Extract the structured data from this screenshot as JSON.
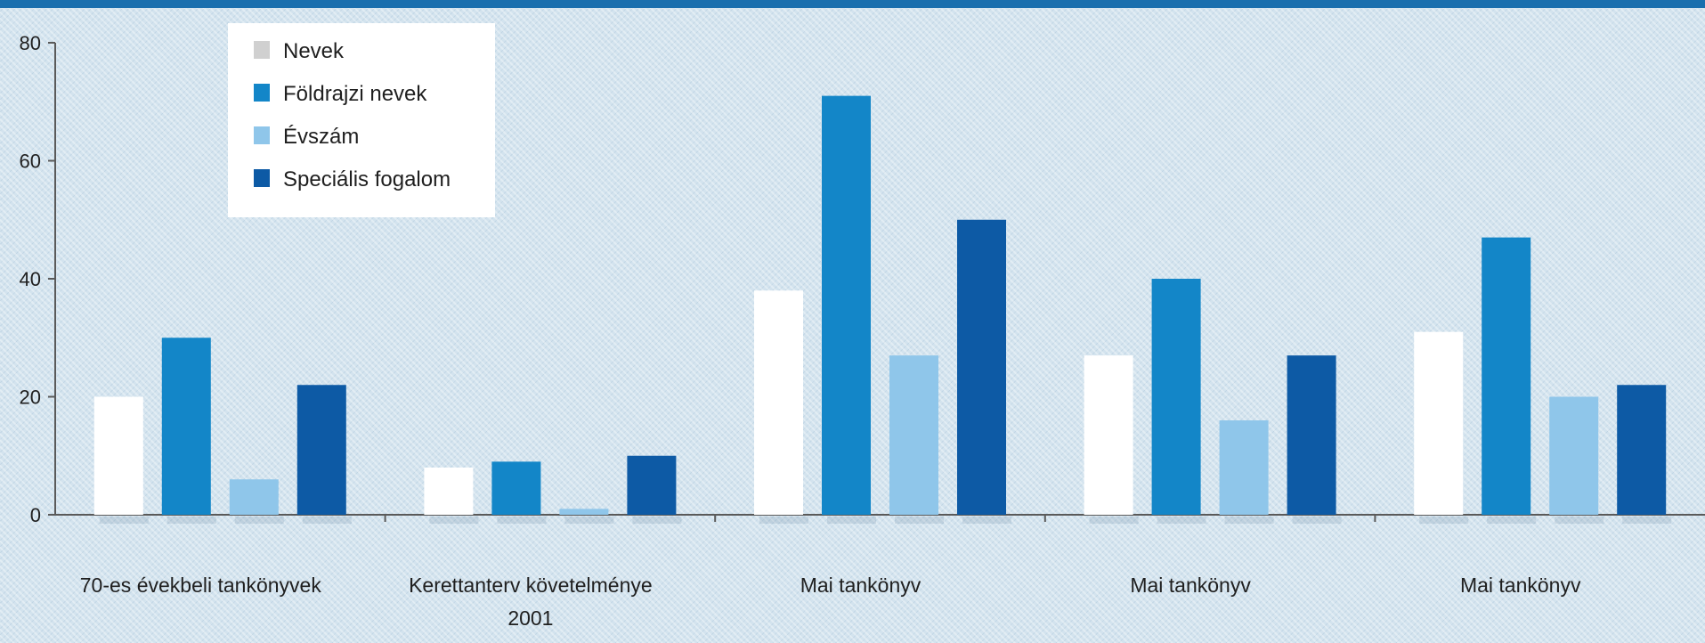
{
  "chart_data": {
    "type": "bar",
    "title": "",
    "xlabel": "",
    "ylabel": "",
    "ylim": [
      0,
      80
    ],
    "yticks": [
      0,
      20,
      40,
      60,
      80
    ],
    "grid": false,
    "legend_position": "top-left",
    "categories": [
      [
        "70-es évekbeli tankönyvek"
      ],
      [
        "Kerettanterv követelménye",
        "2001"
      ],
      [
        "Mai tankönyv"
      ],
      [
        "Mai tankönyv"
      ],
      [
        "Mai tankönyv"
      ]
    ],
    "series": [
      {
        "name": "Nevek",
        "color": "#ffffff",
        "values": [
          20,
          8,
          38,
          27,
          31
        ]
      },
      {
        "name": "Földrajzi nevek",
        "color": "#1386c8",
        "values": [
          30,
          9,
          71,
          40,
          47
        ]
      },
      {
        "name": "Évszám",
        "color": "#8fc6ea",
        "values": [
          6,
          1,
          27,
          16,
          20
        ]
      },
      {
        "name": "Speciális fogalom",
        "color": "#0d5aa5",
        "values": [
          22,
          10,
          50,
          27,
          22
        ]
      }
    ]
  }
}
